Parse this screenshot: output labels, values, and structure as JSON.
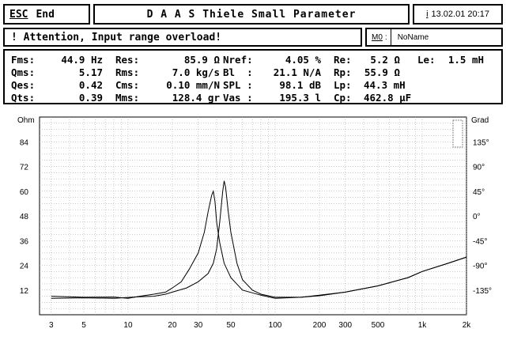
{
  "header": {
    "esc_label": "ESC",
    "end_label": "End",
    "title": "D A A S  Thiele Small Parameter",
    "info_icon": "i",
    "date": "13.02.01",
    "time": "20:17"
  },
  "status": {
    "warning": "! Attention, Input range overload!",
    "memory_key": "M0",
    "memory_suffix": ":",
    "memory_name": "NoName"
  },
  "params": {
    "col1": [
      {
        "label": "Fms:",
        "value": "44.9 Hz"
      },
      {
        "label": "Qms:",
        "value": "5.17"
      },
      {
        "label": "Qes:",
        "value": "0.42"
      },
      {
        "label": "Qts:",
        "value": "0.39"
      }
    ],
    "col2": [
      {
        "label": "Res:",
        "value": "85.9 Ω"
      },
      {
        "label": "Rms:",
        "value": "7.0 kg/s"
      },
      {
        "label": "Cms:",
        "value": "0.10 mm/N"
      },
      {
        "label": "Mms:",
        "value": "128.4 gr"
      }
    ],
    "col3": [
      {
        "label": "Nref:",
        "value": "4.05 %"
      },
      {
        "label": "Bl  :",
        "value": "21.1 N/A"
      },
      {
        "label": "SPL :",
        "value": "98.1 dB"
      },
      {
        "label": "Vas :",
        "value": "195.3 l"
      }
    ],
    "col4": [
      {
        "label": "Re:",
        "value": "5.2 Ω"
      },
      {
        "label": "Rp:",
        "value": "55.9 Ω"
      },
      {
        "label": "Lp:",
        "value": "44.3 mH"
      },
      {
        "label": "Cp:",
        "value": "462.8 µF"
      }
    ],
    "col5": [
      {
        "label": "Le:",
        "value": "1.5 mH"
      }
    ]
  },
  "chart_data": {
    "type": "line",
    "ylabel_left": "Ohm",
    "ylabel_right": "Grad",
    "x_scale": "log",
    "xlim": [
      2.5,
      2000
    ],
    "ylim": [
      0,
      96
    ],
    "x_ticks": [
      {
        "v": 3,
        "label": "3"
      },
      {
        "v": 5,
        "label": "5"
      },
      {
        "v": 10,
        "label": "10"
      },
      {
        "v": 20,
        "label": "20"
      },
      {
        "v": 30,
        "label": "30"
      },
      {
        "v": 50,
        "label": "50"
      },
      {
        "v": 100,
        "label": "100"
      },
      {
        "v": 200,
        "label": "200"
      },
      {
        "v": 300,
        "label": "300"
      },
      {
        "v": 500,
        "label": "500"
      },
      {
        "v": 1000,
        "label": "1k"
      },
      {
        "v": 2000,
        "label": "2k"
      }
    ],
    "y_ticks_left": [
      "12",
      "24",
      "36",
      "48",
      "60",
      "72",
      "84"
    ],
    "y_ticks_right": [
      "-135°",
      "-90°",
      "-45°",
      "0°",
      "45°",
      "90°",
      "135°"
    ],
    "grid": true,
    "series": [
      {
        "points": [
          [
            3,
            9
          ],
          [
            5,
            8.5
          ],
          [
            8,
            8.6
          ],
          [
            10,
            8
          ],
          [
            12,
            9
          ],
          [
            15,
            10
          ],
          [
            18,
            11
          ],
          [
            20,
            13
          ],
          [
            23,
            16
          ],
          [
            26,
            22
          ],
          [
            30,
            30
          ],
          [
            33,
            40
          ],
          [
            35,
            50
          ],
          [
            37,
            58
          ],
          [
            38,
            60
          ],
          [
            39,
            55
          ],
          [
            40,
            45
          ],
          [
            42,
            35
          ],
          [
            45,
            25
          ],
          [
            50,
            18
          ],
          [
            60,
            12
          ],
          [
            80,
            9.5
          ],
          [
            100,
            8
          ],
          [
            150,
            8.5
          ],
          [
            200,
            9.5
          ],
          [
            300,
            11
          ],
          [
            500,
            14
          ],
          [
            800,
            18
          ],
          [
            1000,
            21
          ],
          [
            1500,
            25
          ],
          [
            2000,
            28
          ]
        ]
      },
      {
        "points": [
          [
            3,
            8
          ],
          [
            5,
            8.2
          ],
          [
            8,
            8
          ],
          [
            10,
            8.4
          ],
          [
            12,
            8.7
          ],
          [
            15,
            9
          ],
          [
            18,
            10
          ],
          [
            20,
            11
          ],
          [
            25,
            13
          ],
          [
            30,
            16
          ],
          [
            35,
            20
          ],
          [
            38,
            25
          ],
          [
            40,
            32
          ],
          [
            42,
            45
          ],
          [
            44,
            60
          ],
          [
            45,
            65
          ],
          [
            46,
            62
          ],
          [
            48,
            50
          ],
          [
            50,
            40
          ],
          [
            55,
            25
          ],
          [
            60,
            17
          ],
          [
            70,
            12
          ],
          [
            80,
            10
          ],
          [
            100,
            8.5
          ],
          [
            150,
            8.5
          ],
          [
            200,
            9.2
          ],
          [
            300,
            11
          ],
          [
            500,
            14
          ],
          [
            800,
            18
          ],
          [
            1000,
            21
          ],
          [
            1500,
            25
          ],
          [
            2000,
            28
          ]
        ]
      }
    ]
  }
}
